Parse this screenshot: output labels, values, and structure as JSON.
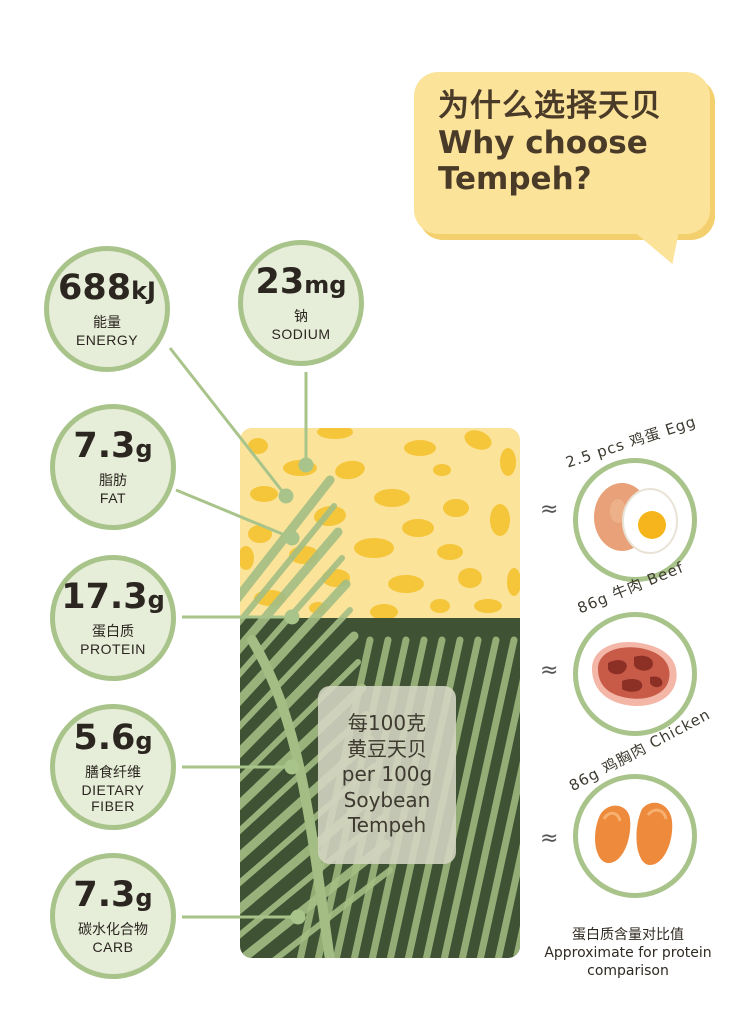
{
  "title": {
    "zh": "为什么选择天贝",
    "en_line1": "Why choose",
    "en_line2": "Tempeh?"
  },
  "nutrients": [
    {
      "id": "energy",
      "value": "688",
      "unit": "kJ",
      "zh": "能量",
      "en": "ENERGY"
    },
    {
      "id": "sodium",
      "value": "23",
      "unit": "mg",
      "zh": "钠",
      "en": "SODIUM"
    },
    {
      "id": "fat",
      "value": "7.3",
      "unit": "g",
      "zh": "脂肪",
      "en": "FAT"
    },
    {
      "id": "protein",
      "value": "17.3",
      "unit": "g",
      "zh": "蛋白质",
      "en": "PROTEIN"
    },
    {
      "id": "fiber",
      "value": "5.6",
      "unit": "g",
      "zh": "膳食纤维",
      "en_line1": "DIETARY",
      "en_line2": "FIBER"
    },
    {
      "id": "carb",
      "value": "7.3",
      "unit": "g",
      "zh": "碳水化合物",
      "en": "CARB"
    }
  ],
  "tempeh_label": {
    "line1": "每100克",
    "line2": "黄豆天贝",
    "line3": "per 100g",
    "line4": "Soybean",
    "line5": "Tempeh"
  },
  "comparisons": [
    {
      "id": "egg",
      "label": "2.5 pcs 鸡蛋 Egg",
      "approx": "≈"
    },
    {
      "id": "beef",
      "label": "86g 牛肉 Beef",
      "approx": "≈"
    },
    {
      "id": "chicken",
      "label": "86g 鸡胸肉 Chicken",
      "approx": "≈"
    }
  ],
  "comparison_note": {
    "zh": "蛋白质含量对比值",
    "en_line1": "Approximate for protein",
    "en_line2": "comparison"
  },
  "colors": {
    "tempeh_top": "#fbe39a",
    "tempeh_spots": "#f5c63a",
    "tempeh_bottom": "#3f5233",
    "leaf": "#a3bd84",
    "circle_fill": "#e6edd8",
    "circle_border": "#a9c48a",
    "bubble": "#fbe39a"
  }
}
